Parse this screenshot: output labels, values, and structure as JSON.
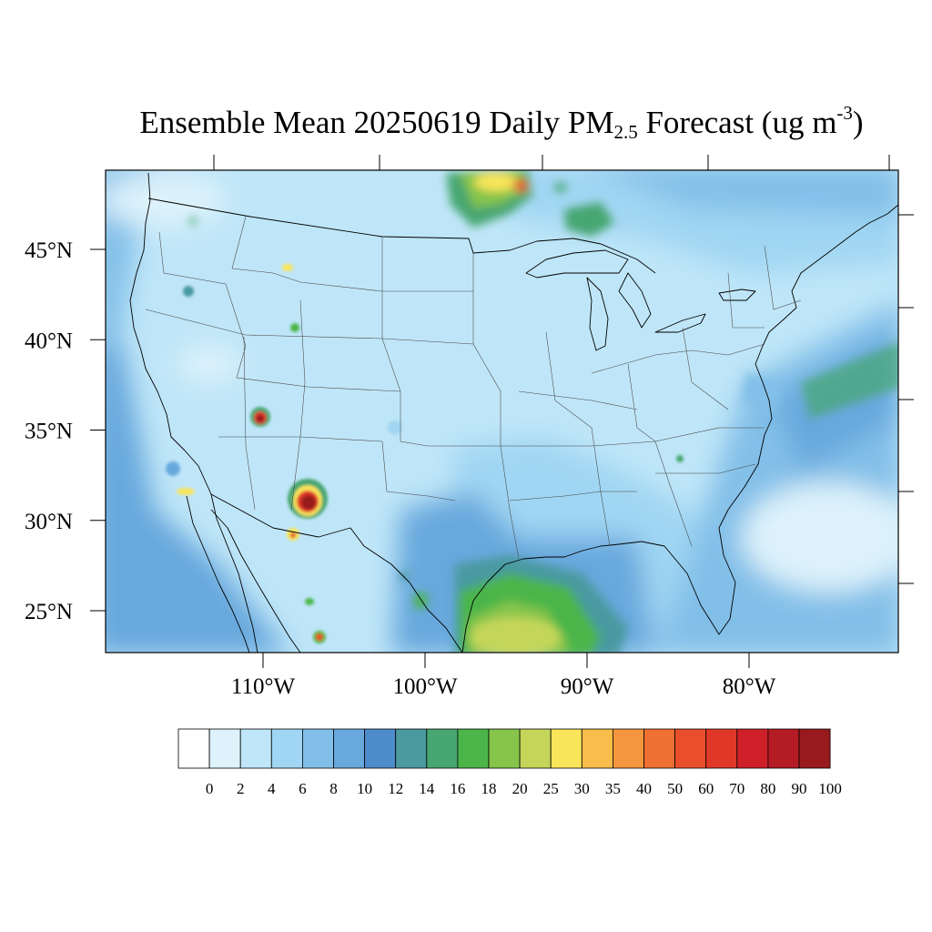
{
  "title": {
    "prefix": "Ensemble Mean 20250619 Daily PM",
    "subscript": "2.5",
    "middle": " Forecast (ug m",
    "superscript": "-3",
    "suffix": ")"
  },
  "map": {
    "lon_ticks": [
      {
        "label": "110°W",
        "lon": -110
      },
      {
        "label": "100°W",
        "lon": -100
      },
      {
        "label": "90°W",
        "lon": -90
      },
      {
        "label": "80°W",
        "lon": -80
      }
    ],
    "lat_ticks": [
      {
        "label": "45°N",
        "lat": 45
      },
      {
        "label": "40°N",
        "lat": 40
      },
      {
        "label": "35°N",
        "lat": 35
      },
      {
        "label": "30°N",
        "lat": 30
      },
      {
        "label": "25°N",
        "lat": 25
      }
    ]
  },
  "colorbar": {
    "labels": [
      "0",
      "2",
      "4",
      "6",
      "8",
      "10",
      "12",
      "14",
      "16",
      "18",
      "20",
      "25",
      "30",
      "35",
      "40",
      "50",
      "60",
      "70",
      "80",
      "90",
      "100"
    ],
    "colors": [
      "#ffffff",
      "#ddf2fb",
      "#bfe6f8",
      "#a0d6f3",
      "#82bfe8",
      "#68a8dd",
      "#4d8bcb",
      "#4a9aa0",
      "#47a671",
      "#4cb54a",
      "#86c44b",
      "#c4d65a",
      "#f9e55a",
      "#f8bd4a",
      "#f5963e",
      "#f06f32",
      "#e94f2c",
      "#df3829",
      "#cf2029",
      "#b51b25",
      "#981a1d"
    ]
  }
}
